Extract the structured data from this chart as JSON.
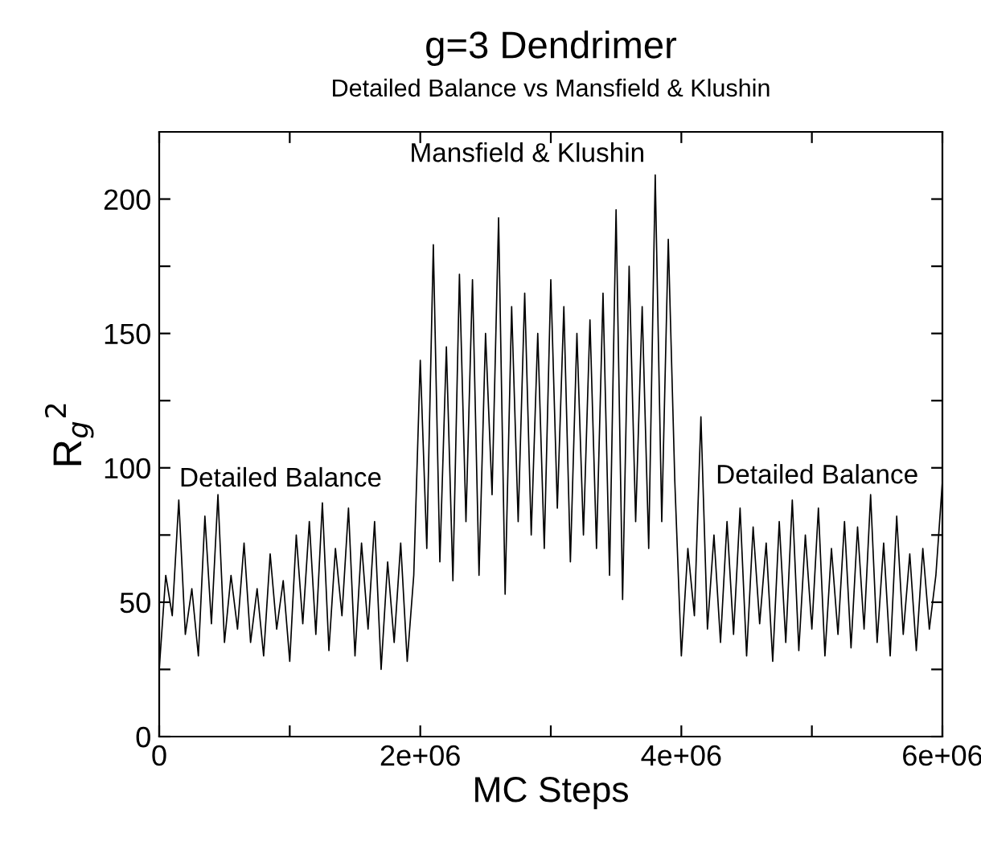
{
  "chart_data": {
    "type": "line",
    "title": "g=3 Dendrimer",
    "subtitle": "Detailed Balance vs Mansfield & Klushin",
    "xlabel": "MC Steps",
    "ylabel": "R$_{g}$$^{2}$",
    "x": [
      0,
      50000,
      100000,
      150000,
      200000,
      250000,
      300000,
      350000,
      400000,
      450000,
      500000,
      550000,
      600000,
      650000,
      700000,
      750000,
      800000,
      850000,
      900000,
      950000,
      1000000,
      1050000,
      1100000,
      1150000,
      1200000,
      1250000,
      1300000,
      1350000,
      1400000,
      1450000,
      1500000,
      1550000,
      1600000,
      1650000,
      1700000,
      1750000,
      1800000,
      1850000,
      1900000,
      1950000,
      2000000,
      2050000,
      2100000,
      2150000,
      2200000,
      2250000,
      2300000,
      2350000,
      2400000,
      2450000,
      2500000,
      2550000,
      2600000,
      2650000,
      2700000,
      2750000,
      2800000,
      2850000,
      2900000,
      2950000,
      3000000,
      3050000,
      3100000,
      3150000,
      3200000,
      3250000,
      3300000,
      3350000,
      3400000,
      3450000,
      3500000,
      3550000,
      3600000,
      3650000,
      3700000,
      3750000,
      3800000,
      3850000,
      3900000,
      3950000,
      4000000,
      4050000,
      4100000,
      4150000,
      4200000,
      4250000,
      4300000,
      4350000,
      4400000,
      4450000,
      4500000,
      4550000,
      4600000,
      4650000,
      4700000,
      4750000,
      4800000,
      4850000,
      4900000,
      4950000,
      5000000,
      5050000,
      5100000,
      5150000,
      5200000,
      5250000,
      5300000,
      5350000,
      5400000,
      5450000,
      5500000,
      5550000,
      5600000,
      5650000,
      5700000,
      5750000,
      5800000,
      5850000,
      5900000,
      5950000,
      6000000
    ],
    "series": [
      {
        "color": "#000000",
        "values": [
          25,
          60,
          45,
          88,
          38,
          55,
          30,
          82,
          42,
          90,
          35,
          60,
          40,
          72,
          35,
          55,
          30,
          68,
          40,
          58,
          28,
          75,
          42,
          80,
          38,
          87,
          32,
          70,
          45,
          85,
          30,
          72,
          40,
          80,
          25,
          65,
          35,
          72,
          28,
          60,
          140,
          70,
          183,
          65,
          145,
          58,
          172,
          80,
          170,
          60,
          150,
          90,
          193,
          53,
          160,
          80,
          165,
          75,
          150,
          70,
          170,
          85,
          160,
          65,
          150,
          75,
          155,
          70,
          165,
          60,
          196,
          51,
          175,
          80,
          160,
          70,
          209,
          80,
          185,
          95,
          30,
          70,
          45,
          119,
          40,
          75,
          35,
          80,
          38,
          85,
          30,
          78,
          42,
          72,
          28,
          80,
          35,
          88,
          32,
          75,
          40,
          85,
          30,
          70,
          38,
          80,
          33,
          78,
          40,
          90,
          35,
          72,
          30,
          82,
          38,
          68,
          32,
          70,
          40,
          60,
          95
        ]
      }
    ],
    "xlim": [
      0,
      6000000
    ],
    "xticks": [
      0,
      {
        "value": 1000000,
        "label": null
      },
      {
        "value": 2000000,
        "label": "2e+06"
      },
      {
        "value": 3000000,
        "label": null
      },
      {
        "value": 4000000,
        "label": "4e+06"
      },
      {
        "value": 5000000,
        "label": null
      },
      {
        "value": 6000000,
        "label": "6e+06"
      }
    ],
    "ylim": [
      0,
      225
    ],
    "yticks": [
      0,
      {
        "value": 25,
        "label": null
      },
      50,
      {
        "value": 75,
        "label": null
      },
      100,
      {
        "value": 125,
        "label": null
      },
      150,
      {
        "value": 175,
        "label": null
      },
      200
    ],
    "grid": false,
    "line_style": "solid",
    "marker": "none",
    "annotations": [
      "Detailed Balance",
      "Mansfield & Klushin",
      "Detailed Balance"
    ]
  }
}
